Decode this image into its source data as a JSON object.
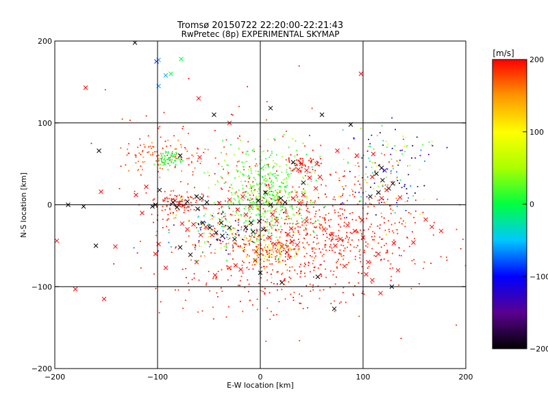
{
  "chart_data": {
    "type": "scatter",
    "title": "Tromsø 20150722 22:20:00-22:21:43",
    "subtitle": "RwPretec (8p) EXPERIMENTAL SKYMAP",
    "xlabel": "E-W location [km]",
    "ylabel": "N-S location [km]",
    "xlim": [
      -200,
      200
    ],
    "ylim": [
      -200,
      200
    ],
    "xticks": [
      -200,
      -100,
      0,
      100,
      200
    ],
    "yticks": [
      -200,
      -100,
      0,
      100,
      200
    ],
    "x_tick_labels": [
      "−200",
      "−100",
      "0",
      "100",
      "200"
    ],
    "y_tick_labels": [
      "−200",
      "−100",
      "0",
      "100",
      "200"
    ],
    "grid": true,
    "grid_lines": [
      -100,
      0,
      100
    ],
    "colorbar": {
      "label": "[m/s]",
      "range": [
        -200,
        200
      ],
      "ticks": [
        -200,
        -100,
        0,
        100,
        200
      ],
      "tick_labels": [
        "−200",
        "−100",
        "0",
        "100",
        "200"
      ],
      "colors": [
        "#000000",
        "#5a0090",
        "#0000ff",
        "#00c8ff",
        "#00ff40",
        "#aaff00",
        "#ffff00",
        "#ff9600",
        "#ff0000"
      ]
    },
    "series": [
      {
        "marker": "x",
        "points": [
          [
            -122,
            198,
            -200
          ],
          [
            -101,
            175,
            -120
          ],
          [
            -99,
            177,
            -60
          ],
          [
            -92,
            158,
            -60
          ],
          [
            -99,
            145,
            -60
          ],
          [
            -87,
            160,
            0
          ],
          [
            -77,
            178,
            0
          ],
          [
            -170,
            143,
            200
          ],
          [
            98,
            160,
            200
          ],
          [
            10,
            118,
            -200
          ],
          [
            60,
            110,
            -200
          ],
          [
            88,
            98,
            -200
          ],
          [
            -157,
            66,
            -200
          ],
          [
            -78,
            60,
            -200
          ],
          [
            -59,
            58,
            200
          ],
          [
            -98,
            18,
            -200
          ],
          [
            -102,
            0,
            -200
          ],
          [
            -105,
            -2,
            -200
          ],
          [
            -187,
            0,
            -200
          ],
          [
            -172,
            -2,
            -200
          ],
          [
            -155,
            16,
            200
          ],
          [
            -160,
            -50,
            -200
          ],
          [
            -152,
            -115,
            200
          ],
          [
            -180,
            -103,
            200
          ],
          [
            -198,
            -44,
            200
          ],
          [
            -111,
            22,
            200
          ],
          [
            -115,
            -10,
            200
          ],
          [
            -83,
            5,
            200
          ],
          [
            -79,
            2,
            200
          ],
          [
            -75,
            -1,
            200
          ],
          [
            -85,
            3,
            -200
          ],
          [
            -81,
            -3,
            -200
          ],
          [
            -71,
            4,
            -200
          ],
          [
            -62,
            10,
            -200
          ],
          [
            -57,
            8,
            -200
          ],
          [
            -52,
            3,
            -200
          ],
          [
            -61,
            -5,
            -200
          ],
          [
            -56,
            -22,
            -200
          ],
          [
            -49,
            -28,
            -200
          ],
          [
            -43,
            -34,
            -200
          ],
          [
            -37,
            -38,
            -200
          ],
          [
            -38,
            -22,
            -200
          ],
          [
            -30,
            -28,
            -200
          ],
          [
            -25,
            -42,
            -200
          ],
          [
            -14,
            -28,
            -200
          ],
          [
            -7,
            -33,
            -200
          ],
          [
            -9,
            -22,
            -200
          ],
          [
            -1,
            -20,
            -200
          ],
          [
            -40,
            2,
            200
          ],
          [
            -30,
            6,
            200
          ],
          [
            -22,
            -6,
            200
          ],
          [
            -14,
            -12,
            200
          ],
          [
            -58,
            -37,
            200
          ],
          [
            -47,
            -37,
            200
          ],
          [
            -53,
            -27,
            200
          ],
          [
            -65,
            -24,
            200
          ],
          [
            -71,
            -30,
            200
          ],
          [
            -76,
            -23,
            200
          ],
          [
            -99,
            -48,
            200
          ],
          [
            -102,
            -60,
            200
          ],
          [
            -10,
            -2,
            200
          ],
          [
            -17,
            10,
            200
          ],
          [
            -2,
            5,
            -200
          ],
          [
            5,
            15,
            -200
          ],
          [
            10,
            0,
            -200
          ],
          [
            20,
            8,
            -200
          ],
          [
            24,
            3,
            -200
          ],
          [
            12,
            -12,
            200
          ],
          [
            9,
            -40,
            200
          ],
          [
            14,
            -48,
            200
          ],
          [
            21,
            -51,
            200
          ],
          [
            26,
            -58,
            200
          ],
          [
            31,
            -45,
            200
          ],
          [
            36,
            -49,
            200
          ],
          [
            3,
            -30,
            -200
          ],
          [
            16,
            -20,
            200
          ],
          [
            21,
            -95,
            -200
          ],
          [
            27,
            -36,
            200
          ],
          [
            37,
            43,
            200
          ],
          [
            40,
            50,
            200
          ],
          [
            48,
            33,
            200
          ],
          [
            54,
            20,
            200
          ],
          [
            58,
            34,
            200
          ],
          [
            45,
            42,
            200
          ],
          [
            55,
            50,
            200
          ],
          [
            32,
            52,
            -200
          ],
          [
            42,
            27,
            -200
          ],
          [
            32,
            8,
            200
          ],
          [
            42,
            12,
            200
          ],
          [
            38,
            2,
            200
          ],
          [
            75,
            66,
            200
          ],
          [
            94,
            60,
            200
          ],
          [
            110,
            62,
            200
          ],
          [
            113,
            38,
            -200
          ],
          [
            119,
            30,
            -200
          ],
          [
            125,
            20,
            -200
          ],
          [
            115,
            15,
            -200
          ],
          [
            107,
            10,
            -200
          ],
          [
            118,
            8,
            200
          ],
          [
            123,
            18,
            200
          ],
          [
            129,
            26,
            -200
          ],
          [
            136,
            9,
            200
          ],
          [
            109,
            34,
            200
          ],
          [
            130,
            -47,
            200
          ],
          [
            134,
            -80,
            200
          ],
          [
            109,
            -92,
            200
          ],
          [
            117,
            -108,
            200
          ],
          [
            128,
            -100,
            -200
          ],
          [
            103,
            -85,
            200
          ],
          [
            72,
            -127,
            -200
          ],
          [
            56,
            -88,
            -200
          ],
          [
            82,
            -75,
            200
          ],
          [
            92,
            -32,
            200
          ],
          [
            78,
            -42,
            200
          ],
          [
            70,
            -36,
            200
          ],
          [
            62,
            -30,
            200
          ],
          [
            85,
            -25,
            200
          ],
          [
            73,
            -50,
            200
          ],
          [
            99,
            -19,
            200
          ],
          [
            167,
            -27,
            200
          ],
          [
            176,
            -32,
            200
          ],
          [
            149,
            -46,
            200
          ],
          [
            161,
            -18,
            200
          ],
          [
            -141,
            -51,
            200
          ],
          [
            -121,
            12,
            200
          ],
          [
            -92,
            -77,
            200
          ],
          [
            -78,
            -52,
            -200
          ],
          [
            -68,
            -61,
            -200
          ],
          [
            -62,
            -70,
            200
          ],
          [
            -44,
            -86,
            200
          ],
          [
            -30,
            -77,
            200
          ],
          [
            -19,
            -79,
            200
          ],
          [
            -5,
            -68,
            200
          ],
          [
            0,
            -83,
            -200
          ],
          [
            -4,
            -57,
            200
          ],
          [
            -24,
            -74,
            200
          ],
          [
            30,
            -29,
            200
          ],
          [
            45,
            -20,
            200
          ],
          [
            118,
            45,
            -200
          ],
          [
            121,
            42,
            -120
          ],
          [
            105,
            -70,
            200
          ],
          [
            115,
            -60,
            200
          ],
          [
            100,
            -40,
            200
          ],
          [
            -60,
            130,
            200
          ],
          [
            -45,
            110,
            -200
          ],
          [
            -30,
            100,
            200
          ]
        ]
      },
      {
        "marker": "dot",
        "count_note": "",
        "seed": 42
      }
    ]
  }
}
